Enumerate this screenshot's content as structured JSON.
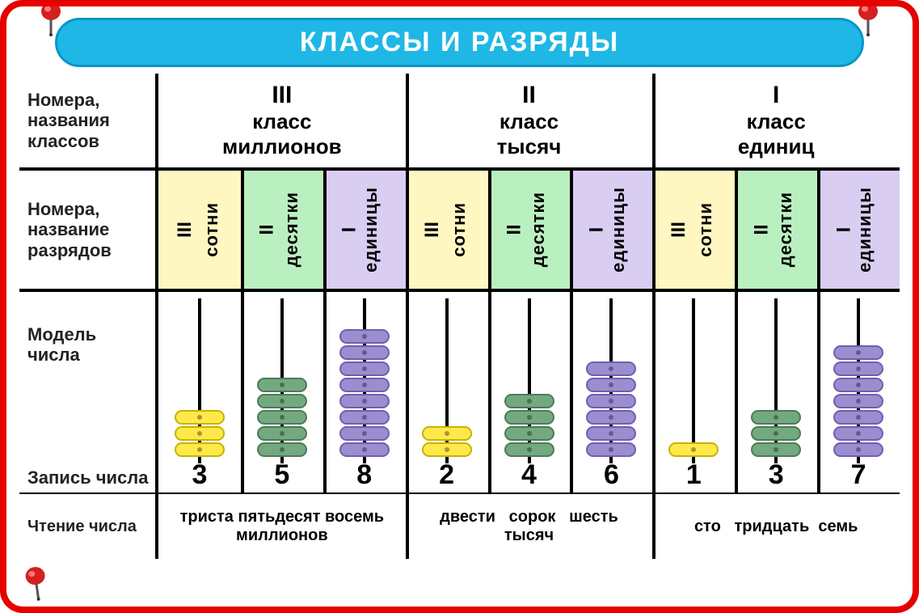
{
  "title": "КЛАССЫ И РАЗРЯДЫ",
  "row_labels": {
    "classes": "Номера, названия классов",
    "digits": "Номера, название разрядов",
    "model": "Модель числа",
    "write": "Запись числа",
    "read": "Чтение числа"
  },
  "classes": [
    {
      "roman": "III",
      "line1": "класс",
      "line2": "миллионов"
    },
    {
      "roman": "II",
      "line1": "класс",
      "line2": "тысяч"
    },
    {
      "roman": "I",
      "line1": "класс",
      "line2": "единиц"
    }
  ],
  "digit_names": [
    {
      "roman": "III",
      "name": "сотни",
      "bg": "bg-yellow",
      "bead": "bead-yellow"
    },
    {
      "roman": "II",
      "name": "десятки",
      "bg": "bg-green",
      "bead": "bead-green"
    },
    {
      "roman": "I",
      "name": "единицы",
      "bg": "bg-purple",
      "bead": "bead-purple"
    }
  ],
  "values": [
    3,
    5,
    8,
    2,
    4,
    6,
    1,
    3,
    7
  ],
  "readings": [
    "триста пятьдесят восемь миллионов",
    "двести сорок шесть тысяч",
    "сто тридцать семь"
  ],
  "colors": {
    "frame": "#e60000",
    "title_bg": "#1fb7e6",
    "title_border": "#0a96c8",
    "yellow_bg": "#fff7c2",
    "green_bg": "#baf0bf",
    "purple_bg": "#d9cdf2",
    "bead_yellow": "#ffe94a",
    "bead_green": "#73a97e",
    "bead_purple": "#9c8dd0",
    "pin": "#d42020"
  },
  "bead_max_height": 9,
  "fontsize": {
    "title": 34,
    "class": 26,
    "digit_name": 22,
    "value": 34,
    "reading": 20,
    "label": 22
  }
}
